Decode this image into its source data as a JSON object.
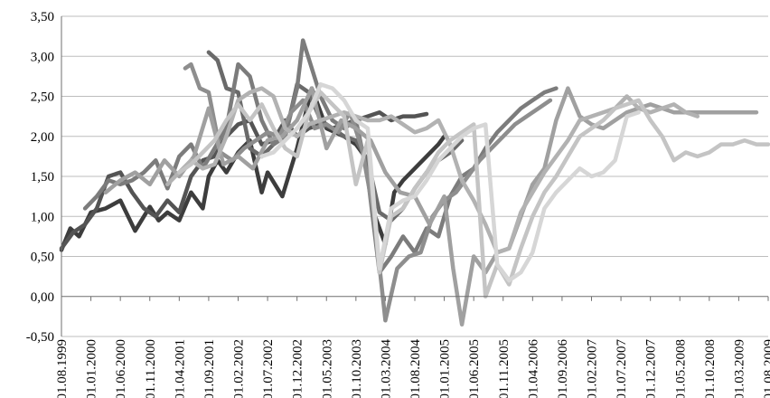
{
  "chart_data": {
    "type": "line",
    "title": "",
    "xlabel": "",
    "ylabel": "",
    "ylim": [
      -0.5,
      3.5
    ],
    "yticks": [
      "-0,50",
      "0,00",
      "0,50",
      "1,00",
      "1,50",
      "2,00",
      "2,50",
      "3,00",
      "3,50"
    ],
    "ytick_values": [
      -0.5,
      0,
      0.5,
      1,
      1.5,
      2,
      2.5,
      3,
      3.5
    ],
    "xticks": [
      "01.08.1999",
      "01.01.2000",
      "01.06.2000",
      "01.11.2000",
      "01.04.2001",
      "01.09.2001",
      "01.02.2002",
      "01.07.2002",
      "01.12.2002",
      "01.05.2003",
      "01.10.2003",
      "01.03.2004",
      "01.08.2004",
      "01.01.2005",
      "01.06.2005",
      "01.11.2005",
      "01.04.2006",
      "01.09.2006",
      "01.02.2007",
      "01.07.2007",
      "01.12.2007",
      "01.05.2008",
      "01.10.2008",
      "01.03.2009",
      "01.08.2009"
    ],
    "grid": true,
    "legend": "none",
    "series": [
      {
        "color": "#3d3d3d",
        "x": [
          0,
          0.3,
          0.6,
          1,
          1.5,
          2,
          2.5,
          3,
          3.3,
          3.6,
          4,
          4.4,
          4.8,
          5,
          5.3,
          5.6,
          6,
          6.4,
          6.8,
          7,
          7.5,
          8,
          8.5,
          9,
          9.3,
          9.6,
          10,
          10.3,
          10.6,
          11,
          11.3,
          11.6,
          12,
          12.4,
          12.8,
          13
        ],
        "values": [
          0.58,
          0.85,
          0.75,
          1.05,
          1.1,
          1.2,
          0.82,
          1.12,
          0.95,
          1.05,
          0.95,
          1.3,
          1.1,
          1.5,
          1.7,
          1.55,
          1.8,
          1.95,
          1.3,
          1.55,
          1.25,
          1.85,
          2.6,
          2.1,
          2.05,
          2.0,
          1.9,
          1.75,
          1.05,
          0.65,
          1.3,
          1.45,
          1.6,
          1.75,
          1.9,
          2.0
        ]
      },
      {
        "color": "#545454",
        "x": [
          0,
          0.4,
          0.8,
          1.2,
          1.6,
          2,
          2.4,
          2.8,
          3.2,
          3.6,
          4,
          4.4,
          4.8,
          5.2,
          5.6,
          6,
          6.4,
          6.8,
          7.2,
          7.6,
          8,
          8.4,
          8.8,
          9.2,
          9.6,
          10,
          10.4,
          10.8,
          11.2,
          11.6,
          12,
          12.4
        ],
        "values": [
          0.6,
          0.8,
          0.9,
          1.1,
          1.5,
          1.55,
          1.3,
          1.1,
          1.0,
          1.2,
          1.05,
          1.5,
          1.7,
          1.75,
          2.0,
          2.15,
          2.2,
          1.9,
          1.95,
          2.2,
          2.0,
          2.1,
          2.15,
          2.1,
          2.15,
          2.2,
          2.25,
          2.3,
          2.2,
          2.25,
          2.25,
          2.28
        ]
      },
      {
        "color": "#6a6a6a",
        "x": [
          5.0,
          5.3,
          5.6,
          6,
          6.4,
          6.8,
          7.2,
          7.6,
          8,
          8.4,
          8.8,
          9.2,
          9.6,
          10,
          10.4,
          10.8,
          11.2,
          11.6,
          12,
          12.4,
          12.8,
          13.2,
          13.6
        ],
        "values": [
          3.05,
          2.95,
          2.6,
          2.55,
          1.85,
          1.75,
          1.9,
          2.0,
          2.65,
          2.55,
          2.2,
          2.1,
          2.0,
          1.95,
          1.7,
          1.05,
          0.95,
          1.1,
          1.35,
          1.55,
          1.7,
          1.8,
          1.95
        ]
      },
      {
        "color": "#7c7c7c",
        "x": [
          0.8,
          1.2,
          1.6,
          2,
          2.4,
          2.8,
          3.2,
          3.6,
          4,
          4.4,
          4.8,
          5.2,
          5.6,
          6,
          6.4,
          6.8,
          7.2,
          7.6,
          8,
          8.2,
          8.5,
          8.8,
          9.2,
          9.6,
          10,
          10.4,
          10.8,
          11.2,
          11.6,
          12,
          12.4,
          12.8,
          13.2,
          13.6,
          14,
          14.4,
          14.8,
          15.2,
          15.6,
          16,
          16.4,
          16.8
        ],
        "values": [
          1.1,
          1.25,
          1.45,
          1.4,
          1.45,
          1.55,
          1.7,
          1.35,
          1.75,
          1.9,
          1.6,
          1.85,
          2.1,
          2.9,
          2.75,
          2.2,
          1.9,
          2.0,
          2.6,
          3.2,
          2.85,
          2.5,
          2.2,
          2.1,
          2.2,
          1.5,
          0.3,
          0.5,
          0.75,
          0.55,
          0.85,
          0.75,
          1.25,
          1.5,
          1.6,
          1.85,
          2.05,
          2.2,
          2.35,
          2.45,
          2.55,
          2.6
        ]
      },
      {
        "color": "#8e8e8e",
        "x": [
          4.2,
          4.4,
          4.7,
          5,
          5.4,
          5.8,
          6.2,
          6.6,
          7,
          7.4,
          7.8,
          8.2,
          8.6,
          9,
          9.4,
          9.8,
          10.2,
          10.6,
          11,
          11.4,
          11.8,
          12.2,
          12.6,
          13,
          13.4,
          13.8,
          14.2,
          14.6,
          15,
          15.4,
          15.8,
          16.2,
          16.6
        ],
        "values": [
          2.85,
          2.9,
          2.6,
          2.55,
          1.8,
          1.7,
          1.85,
          1.95,
          2.05,
          2.0,
          2.3,
          2.45,
          2.1,
          2.15,
          2.05,
          2.3,
          1.85,
          1.05,
          -0.3,
          0.35,
          0.5,
          0.55,
          1.0,
          1.2,
          1.3,
          1.5,
          1.7,
          1.85,
          2.0,
          2.15,
          2.25,
          2.35,
          2.45
        ]
      },
      {
        "color": "#a0a0a0",
        "x": [
          1.5,
          2,
          2.5,
          3,
          3.5,
          4,
          4.5,
          5,
          5.5,
          6,
          6.5,
          7,
          7.5,
          8,
          8.5,
          9,
          9.5,
          10,
          10.5,
          11,
          11.5,
          12,
          12.5,
          13,
          13.3,
          13.6,
          14,
          14.4,
          14.8,
          15.2,
          15.6,
          16,
          16.4,
          16.8,
          17.2,
          17.6,
          18,
          18.4,
          18.8,
          19.2,
          19.6,
          20,
          20.4,
          20.8,
          21.2,
          21.6,
          22,
          22.4,
          22.8,
          23.2,
          23.6
        ],
        "values": [
          1.3,
          1.45,
          1.55,
          1.4,
          1.7,
          1.5,
          1.75,
          2.35,
          1.65,
          1.75,
          1.6,
          1.95,
          2.0,
          2.2,
          2.6,
          1.85,
          2.2,
          2.1,
          1.95,
          1.55,
          1.3,
          1.25,
          0.9,
          1.25,
          0.35,
          -0.35,
          0.5,
          0.3,
          0.55,
          0.6,
          1.0,
          1.4,
          1.6,
          2.2,
          2.6,
          2.25,
          2.15,
          2.1,
          2.2,
          2.3,
          2.35,
          2.4,
          2.35,
          2.3,
          2.3,
          2.3,
          2.3,
          2.3,
          2.3,
          2.3,
          2.3
        ]
      },
      {
        "color": "#b2b2b2",
        "x": [
          3.6,
          4,
          4.4,
          4.8,
          5.2,
          5.6,
          6,
          6.4,
          6.8,
          7.2,
          7.6,
          8,
          8.4,
          8.8,
          9.2,
          9.6,
          10,
          10.4,
          10.8,
          11.2,
          11.6,
          12,
          12.4,
          12.8,
          13.2,
          13.6,
          14,
          14.4,
          14.8,
          15.2,
          15.6,
          16,
          16.4,
          16.8,
          17.2,
          17.6,
          18,
          18.4,
          18.8,
          19.2,
          19.6,
          20,
          20.4,
          20.8,
          21.2,
          21.6
        ],
        "values": [
          1.4,
          1.55,
          1.7,
          1.6,
          1.65,
          2.0,
          2.45,
          2.55,
          2.6,
          2.5,
          2.1,
          2.0,
          2.15,
          2.2,
          2.25,
          2.3,
          2.25,
          2.2,
          2.2,
          2.25,
          2.15,
          2.05,
          2.1,
          2.2,
          1.9,
          1.45,
          1.2,
          0.9,
          0.55,
          0.6,
          1.05,
          1.3,
          1.55,
          1.75,
          1.95,
          2.2,
          2.25,
          2.3,
          2.35,
          2.5,
          2.35,
          2.3,
          2.35,
          2.4,
          2.3,
          2.25
        ]
      },
      {
        "color": "#c4c4c4",
        "x": [
          4,
          4.4,
          4.8,
          5.2,
          5.6,
          6,
          6.4,
          6.8,
          7.2,
          7.6,
          8,
          8.4,
          8.8,
          9.2,
          9.6,
          10,
          10.4,
          10.8,
          11.2,
          11.6,
          12,
          12.4,
          12.8,
          13.2,
          13.6,
          14,
          14.4,
          14.8,
          15.2,
          15.6,
          16,
          16.4,
          16.8,
          17.2,
          17.6,
          18,
          18.4,
          18.8,
          19.2,
          19.6,
          20,
          20.4,
          20.8,
          21.2,
          21.6,
          22,
          22.4,
          22.8,
          23.2,
          23.6,
          24
        ],
        "values": [
          1.55,
          1.65,
          1.8,
          1.95,
          2.2,
          2.4,
          2.2,
          2.4,
          2.1,
          1.85,
          1.75,
          2.3,
          2.55,
          2.4,
          2.25,
          1.4,
          1.95,
          0.3,
          1.0,
          1.1,
          1.35,
          1.55,
          1.8,
          1.95,
          2.05,
          2.15,
          0.0,
          0.4,
          0.15,
          0.6,
          1.0,
          1.3,
          1.5,
          1.75,
          2.0,
          2.1,
          2.2,
          2.35,
          2.4,
          2.45,
          2.2,
          2.0,
          1.7,
          1.8,
          1.75,
          1.8,
          1.9,
          1.9,
          1.95,
          1.9,
          1.9
        ]
      },
      {
        "color": "#d6d6d6",
        "x": [
          6.8,
          7.2,
          7.6,
          8,
          8.4,
          8.8,
          9.2,
          9.6,
          10,
          10.4,
          10.8,
          11.2,
          11.6,
          12,
          12.4,
          12.8,
          13.2,
          13.6,
          14,
          14.4,
          14.8,
          15.2,
          15.6,
          16,
          16.4,
          16.8,
          17.2,
          17.6,
          18,
          18.4,
          18.8,
          19.2,
          19.6
        ],
        "values": [
          1.75,
          1.8,
          1.95,
          2.1,
          2.3,
          2.65,
          2.6,
          2.45,
          2.2,
          2.1,
          0.35,
          1.1,
          1.2,
          1.25,
          1.45,
          1.7,
          1.85,
          2.0,
          2.1,
          2.15,
          0.4,
          0.2,
          0.3,
          0.55,
          1.1,
          1.3,
          1.45,
          1.6,
          1.5,
          1.55,
          1.7,
          2.25,
          2.3
        ]
      }
    ]
  }
}
